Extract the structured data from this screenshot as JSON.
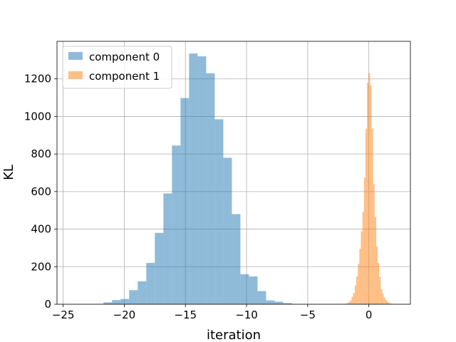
{
  "chart_data": {
    "type": "histogram",
    "xlabel": "iteration",
    "ylabel": "KL",
    "xlim": [
      -25.5,
      3.4
    ],
    "ylim": [
      0,
      1400
    ],
    "xticks": [
      -25,
      -20,
      -15,
      -10,
      -5,
      0
    ],
    "yticks": [
      0,
      200,
      400,
      600,
      800,
      1000,
      1200
    ],
    "grid": true,
    "legend_position": "top-left",
    "series": [
      {
        "name": "component 0",
        "color": "#1f77b4",
        "opacity": 0.5,
        "bin_width": 0.7,
        "bins": [
          [
            -22.4,
            2
          ],
          [
            -21.7,
            10
          ],
          [
            -21.0,
            22
          ],
          [
            -20.3,
            28
          ],
          [
            -19.6,
            75
          ],
          [
            -18.9,
            122
          ],
          [
            -18.2,
            220
          ],
          [
            -17.5,
            380
          ],
          [
            -16.8,
            590
          ],
          [
            -16.1,
            845
          ],
          [
            -15.4,
            1098
          ],
          [
            -14.7,
            1335
          ],
          [
            -14.0,
            1320
          ],
          [
            -13.3,
            1230
          ],
          [
            -12.6,
            985
          ],
          [
            -11.9,
            780
          ],
          [
            -11.2,
            480
          ],
          [
            -10.5,
            160
          ],
          [
            -9.8,
            148
          ],
          [
            -9.1,
            70
          ],
          [
            -8.4,
            20
          ],
          [
            -7.7,
            14
          ],
          [
            -7.0,
            6
          ],
          [
            -6.3,
            1
          ]
        ]
      },
      {
        "name": "component 1",
        "color": "#ff7f0e",
        "opacity": 0.5,
        "bin_width": 0.125,
        "bins": [
          [
            -1.9,
            4
          ],
          [
            -1.775,
            7
          ],
          [
            -1.65,
            12
          ],
          [
            -1.525,
            22
          ],
          [
            -1.4,
            40
          ],
          [
            -1.275,
            60
          ],
          [
            -1.15,
            100
          ],
          [
            -1.025,
            148
          ],
          [
            -0.9,
            215
          ],
          [
            -0.775,
            295
          ],
          [
            -0.65,
            388
          ],
          [
            -0.525,
            490
          ],
          [
            -0.4,
            675
          ],
          [
            -0.275,
            935
          ],
          [
            -0.15,
            1180
          ],
          [
            -0.025,
            1230
          ],
          [
            0.1,
            1165
          ],
          [
            0.225,
            935
          ],
          [
            0.35,
            640
          ],
          [
            0.475,
            465
          ],
          [
            0.6,
            308
          ],
          [
            0.725,
            220
          ],
          [
            0.85,
            145
          ],
          [
            0.975,
            80
          ],
          [
            1.1,
            55
          ],
          [
            1.225,
            35
          ],
          [
            1.35,
            22
          ],
          [
            1.475,
            14
          ],
          [
            1.6,
            8
          ],
          [
            1.725,
            4
          ],
          [
            1.85,
            2
          ]
        ]
      }
    ]
  }
}
